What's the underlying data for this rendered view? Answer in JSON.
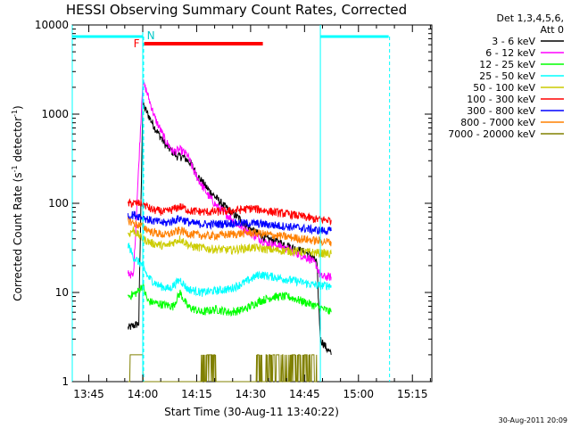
{
  "chart_data": {
    "type": "line",
    "title": "HESSI Observing Summary Count Rates, Corrected",
    "xlabel": "Start Time (30-Aug-11 13:40:22)",
    "ylabel_main": "Corrected Count Rate (s",
    "ylabel_sup1": "-1",
    "ylabel_mid": " detector",
    "ylabel_sup2": "-1",
    "ylabel_end": ")",
    "y_scale": "log",
    "ylim": [
      1,
      10000
    ],
    "xlim_minutes_from_start": [
      0,
      100
    ],
    "x_tick_minutes": [
      4.6,
      19.6,
      34.6,
      49.6,
      64.6,
      79.6,
      94.6
    ],
    "x_tick_labels": [
      "13:45",
      "14:00",
      "14:15",
      "14:30",
      "14:45",
      "15:00",
      "15:15"
    ],
    "y_ticks": [
      1,
      10,
      100,
      1000,
      10000
    ],
    "y_tick_labels": [
      "1",
      "10",
      "100",
      "1000",
      "10000"
    ],
    "legend_header": [
      "Det 1,3,4,5,6,",
      "Att 0"
    ],
    "legend_placement": "right of plot",
    "series": [
      {
        "name": "3 - 6 keV",
        "color": "#000000",
        "points": [
          [
            15.5,
            4
          ],
          [
            18.5,
            4.5
          ],
          [
            19.6,
            1300
          ],
          [
            20.5,
            1100
          ],
          [
            23,
            700
          ],
          [
            26,
            450
          ],
          [
            29,
            340
          ],
          [
            31,
            330
          ],
          [
            33,
            280
          ],
          [
            35,
            200
          ],
          [
            38,
            140
          ],
          [
            42,
            95
          ],
          [
            46,
            70
          ],
          [
            50,
            50
          ],
          [
            54,
            40
          ],
          [
            58,
            36
          ],
          [
            62,
            31
          ],
          [
            66,
            27
          ],
          [
            68,
            22
          ],
          [
            69,
            3
          ],
          [
            72,
            2
          ]
        ]
      },
      {
        "name": "6 - 12 keV",
        "color": "#ff00ff",
        "points": [
          [
            15.5,
            17
          ],
          [
            17,
            15
          ],
          [
            19.6,
            2300
          ],
          [
            20.5,
            1900
          ],
          [
            23,
            900
          ],
          [
            26,
            500
          ],
          [
            28,
            380
          ],
          [
            30,
            400
          ],
          [
            32,
            350
          ],
          [
            34,
            220
          ],
          [
            36,
            160
          ],
          [
            38,
            120
          ],
          [
            40,
            95
          ],
          [
            43,
            75
          ],
          [
            46,
            58
          ],
          [
            50,
            45
          ],
          [
            54,
            36
          ],
          [
            58,
            33
          ],
          [
            62,
            28
          ],
          [
            66,
            24
          ],
          [
            68,
            20
          ],
          [
            69,
            15
          ],
          [
            72,
            15
          ]
        ]
      },
      {
        "name": "12 - 25 keV",
        "color": "#00ff00",
        "points": [
          [
            15.5,
            9
          ],
          [
            18,
            10
          ],
          [
            19.6,
            12
          ],
          [
            21,
            8
          ],
          [
            24,
            7.5
          ],
          [
            28,
            7
          ],
          [
            30,
            10
          ],
          [
            32,
            7
          ],
          [
            36,
            6
          ],
          [
            40,
            6.5
          ],
          [
            44,
            6
          ],
          [
            48,
            6.5
          ],
          [
            52,
            8
          ],
          [
            56,
            9
          ],
          [
            60,
            9
          ],
          [
            64,
            8
          ],
          [
            68,
            7
          ],
          [
            72,
            6
          ]
        ]
      },
      {
        "name": "25 - 50 keV",
        "color": "#00ffff",
        "points": [
          [
            15.5,
            35
          ],
          [
            17,
            25
          ],
          [
            19.6,
            20
          ],
          [
            21,
            15
          ],
          [
            24,
            12
          ],
          [
            27,
            11
          ],
          [
            30,
            14
          ],
          [
            32,
            11
          ],
          [
            36,
            10
          ],
          [
            40,
            10.5
          ],
          [
            44,
            11
          ],
          [
            48,
            13
          ],
          [
            52,
            16
          ],
          [
            56,
            15
          ],
          [
            60,
            14
          ],
          [
            64,
            13
          ],
          [
            68,
            12
          ],
          [
            72,
            12
          ]
        ]
      },
      {
        "name": "50 - 100 keV",
        "color": "#cccc00",
        "points": [
          [
            15.5,
            45
          ],
          [
            17,
            50
          ],
          [
            19.6,
            40
          ],
          [
            22,
            36
          ],
          [
            26,
            33
          ],
          [
            30,
            40
          ],
          [
            33,
            33
          ],
          [
            38,
            31
          ],
          [
            44,
            30
          ],
          [
            50,
            32
          ],
          [
            56,
            30
          ],
          [
            62,
            29
          ],
          [
            68,
            28
          ],
          [
            72,
            27
          ]
        ]
      },
      {
        "name": "100 - 300 keV",
        "color": "#ff0000",
        "points": [
          [
            15.5,
            100
          ],
          [
            17,
            100
          ],
          [
            19.6,
            100
          ],
          [
            22,
            85
          ],
          [
            26,
            80
          ],
          [
            30,
            92
          ],
          [
            33,
            82
          ],
          [
            38,
            80
          ],
          [
            44,
            82
          ],
          [
            50,
            88
          ],
          [
            56,
            80
          ],
          [
            62,
            74
          ],
          [
            68,
            66
          ],
          [
            72,
            65
          ]
        ]
      },
      {
        "name": "300 - 800 keV",
        "color": "#0000ff",
        "points": [
          [
            15.5,
            70
          ],
          [
            17,
            75
          ],
          [
            19.6,
            70
          ],
          [
            22,
            64
          ],
          [
            26,
            60
          ],
          [
            30,
            68
          ],
          [
            33,
            60
          ],
          [
            38,
            58
          ],
          [
            44,
            60
          ],
          [
            50,
            60
          ],
          [
            56,
            57
          ],
          [
            62,
            54
          ],
          [
            68,
            50
          ],
          [
            72,
            49
          ]
        ]
      },
      {
        "name": "800 - 7000 keV",
        "color": "#ff8000",
        "points": [
          [
            15.5,
            65
          ],
          [
            17,
            60
          ],
          [
            19.6,
            55
          ],
          [
            22,
            48
          ],
          [
            26,
            44
          ],
          [
            30,
            50
          ],
          [
            33,
            45
          ],
          [
            38,
            43
          ],
          [
            44,
            45
          ],
          [
            50,
            47
          ],
          [
            56,
            44
          ],
          [
            62,
            41
          ],
          [
            68,
            38
          ],
          [
            72,
            37
          ]
        ]
      },
      {
        "name": "7000 - 20000 keV",
        "color": "#808000",
        "points": [
          [
            15.5,
            1
          ],
          [
            16,
            2.5
          ],
          [
            19.6,
            2
          ],
          [
            19.7,
            1
          ],
          [
            36,
            1
          ],
          [
            36.2,
            2
          ],
          [
            38,
            1
          ],
          [
            51,
            1
          ],
          [
            51.2,
            2
          ],
          [
            66,
            2
          ],
          [
            68,
            1
          ]
        ]
      }
    ],
    "flags": [
      {
        "label": "F",
        "color": "#ff0000",
        "type": "flare",
        "start_min": 20,
        "end_min": 53
      },
      {
        "label": "N",
        "color": "#00c8c8",
        "type": "night",
        "start_min": 20
      }
    ],
    "night_bars_minutes": [
      [
        0,
        19.6
      ],
      [
        69,
        88
      ]
    ],
    "vertical_solid_minutes": [
      19.6,
      69
    ],
    "vertical_dashed_minutes": [
      19.6,
      88
    ],
    "timestamp_footer": "30-Aug-2011 20:09"
  }
}
